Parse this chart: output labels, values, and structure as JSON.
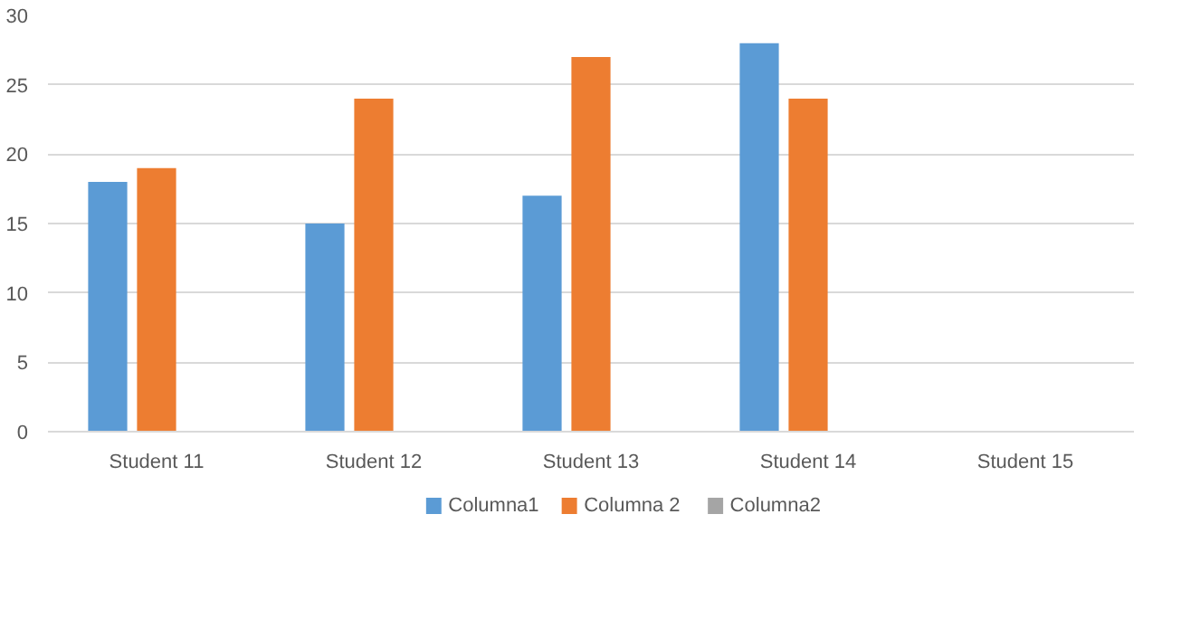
{
  "chart_data": {
    "type": "bar",
    "categories": [
      "Student 11",
      "Student 12",
      "Student 13",
      "Student 14",
      "Student 15"
    ],
    "series": [
      {
        "name": "Columna1",
        "color": "#5b9bd5",
        "values": [
          18,
          15,
          17,
          28,
          null
        ]
      },
      {
        "name": "Columna 2",
        "color": "#ed7d31",
        "values": [
          19,
          24,
          27,
          24,
          null
        ]
      },
      {
        "name": "Columna2",
        "color": "#a5a5a5",
        "values": [
          null,
          null,
          null,
          null,
          null
        ]
      }
    ],
    "ylim": [
      0,
      30
    ],
    "yticks": [
      0,
      5,
      10,
      15,
      20,
      25,
      30
    ],
    "grid": "y",
    "legend": "bottom"
  }
}
